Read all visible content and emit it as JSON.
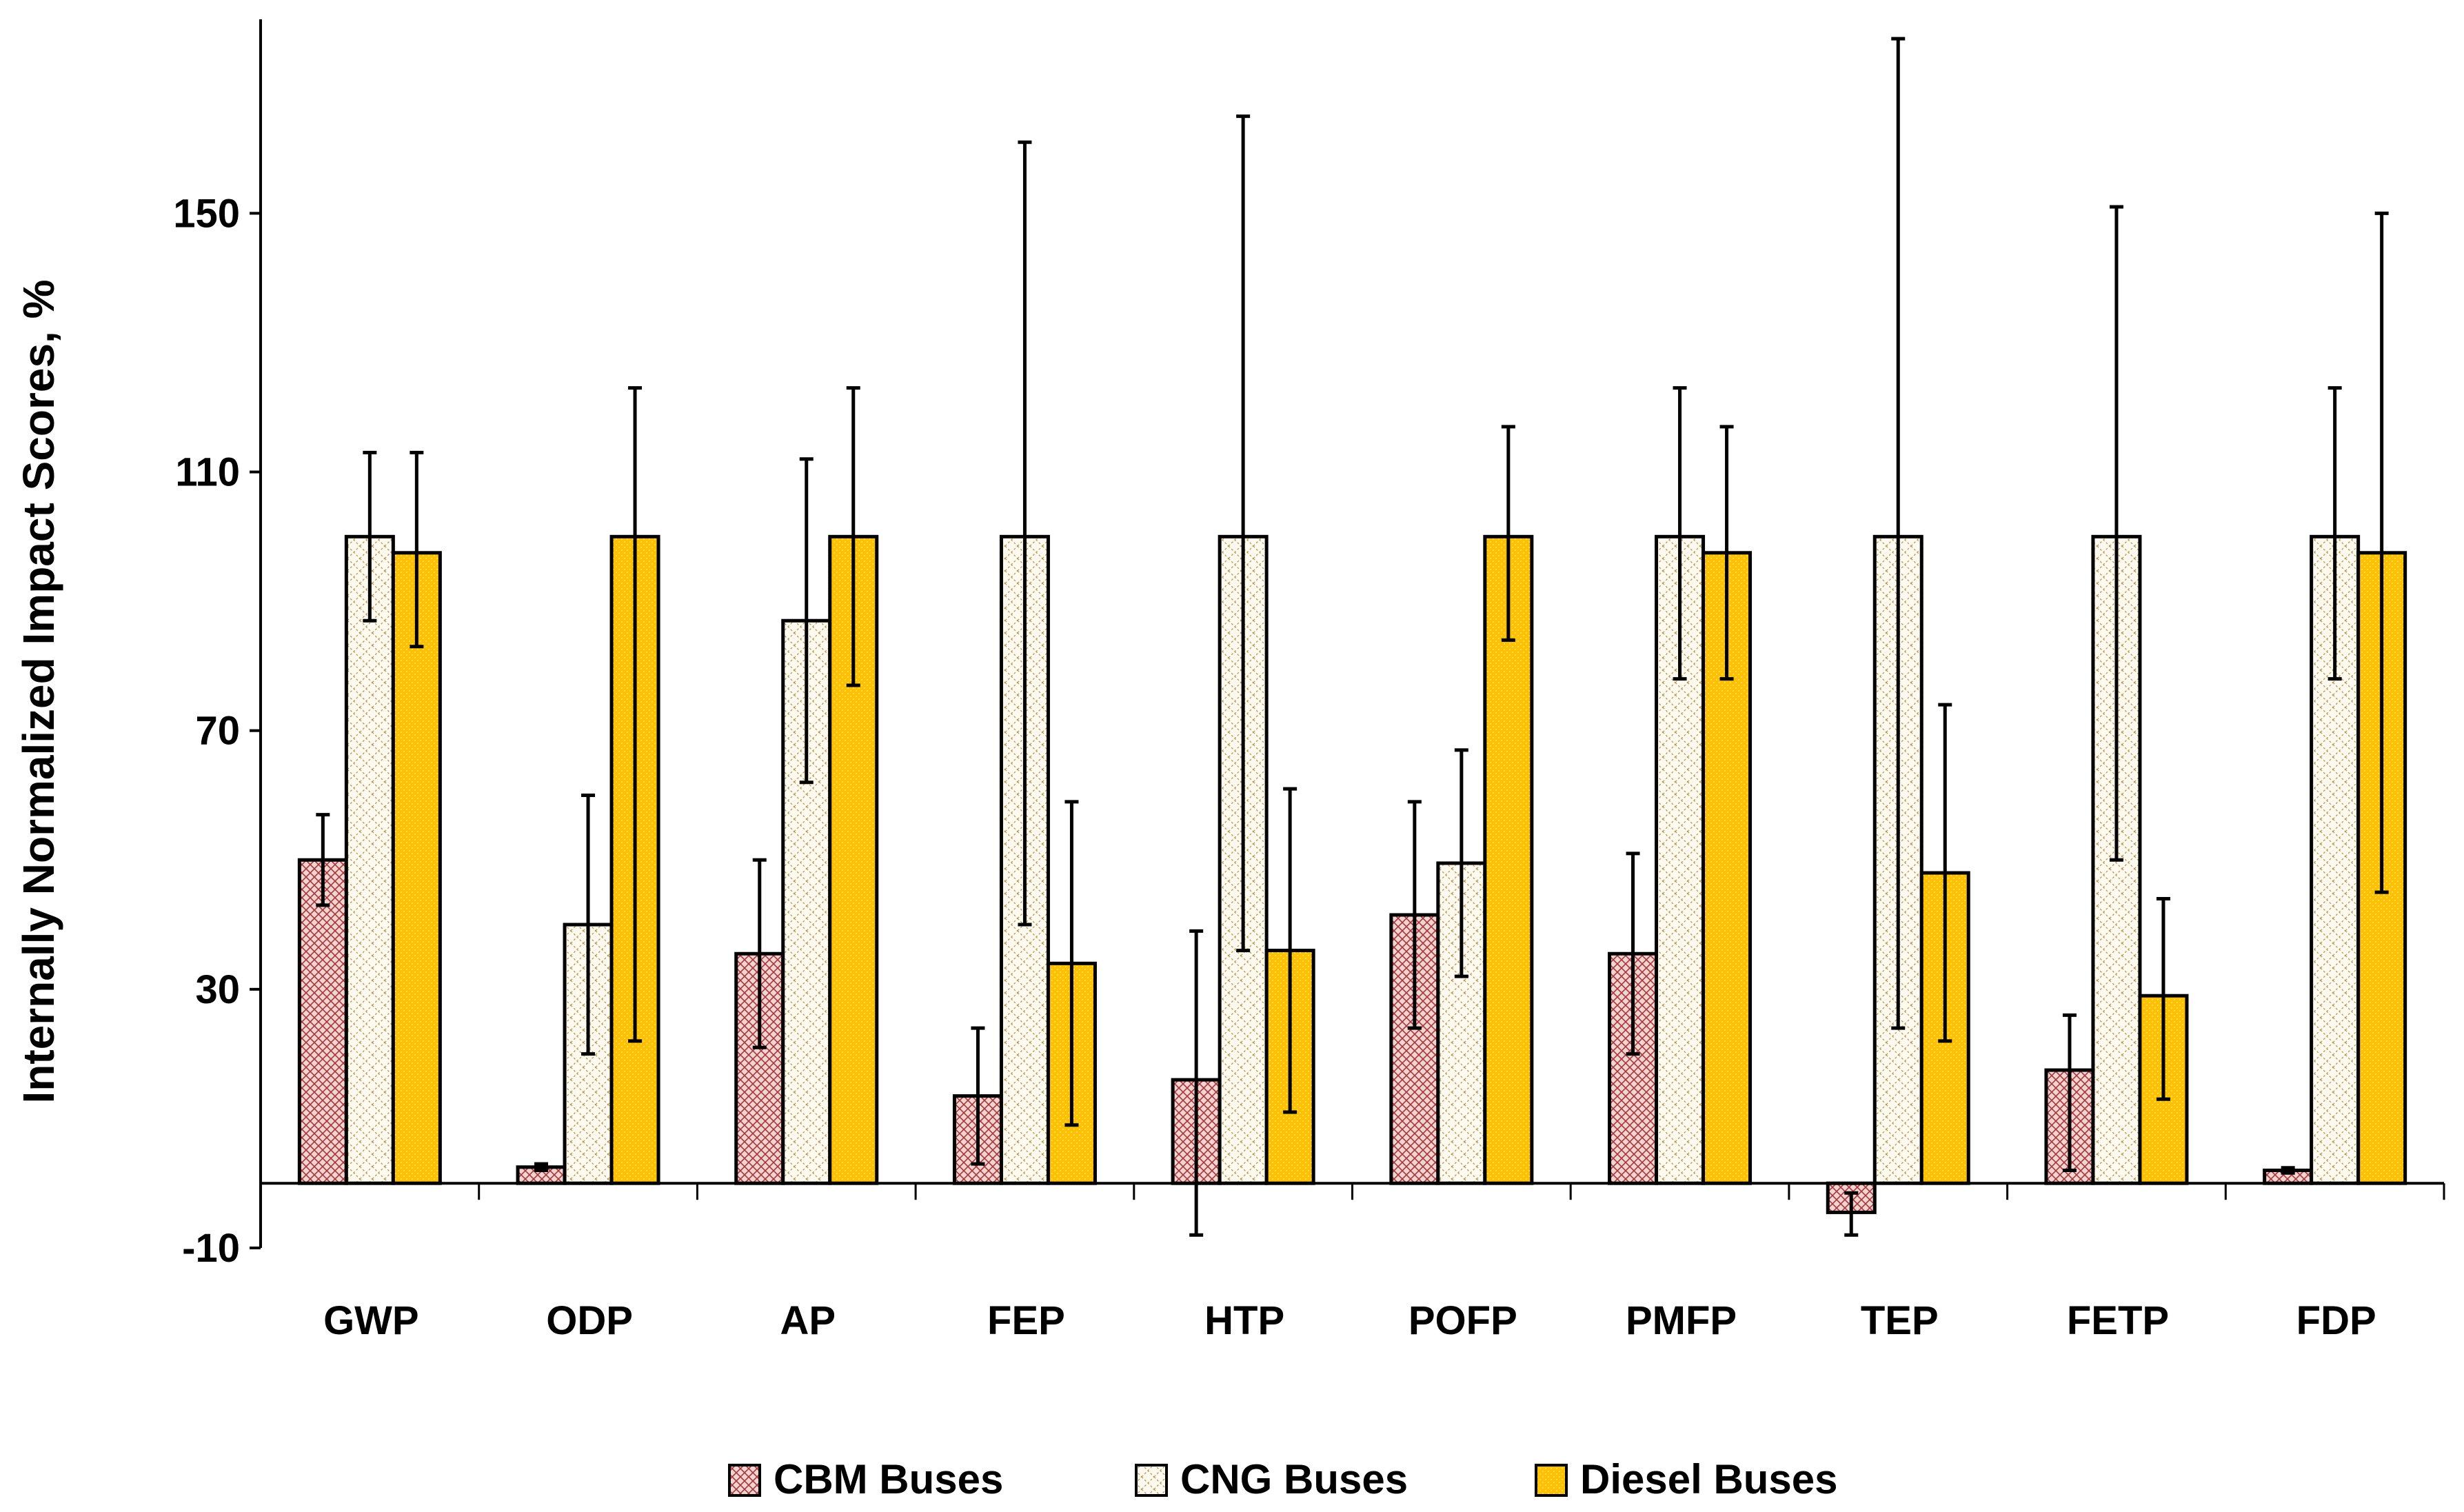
{
  "chart_data": {
    "type": "bar",
    "title": "",
    "xlabel": "",
    "ylabel": "Internally Normalized Impact Scores, %",
    "ylim": [
      -10,
      180
    ],
    "yticks": [
      -10,
      30,
      70,
      110,
      150
    ],
    "ytick_labels": [
      "-10",
      "30",
      "70",
      "110",
      "150"
    ],
    "categories": [
      "GWP",
      "ODP",
      "AP",
      "FEP",
      "HTP",
      "POFP",
      "PMFP",
      "TEP",
      "FETP",
      "FDP"
    ],
    "legend_position": "bottom",
    "series": [
      {
        "name": "CBM Buses",
        "color": "#f2c9c9",
        "pattern": "crosshatch-red",
        "values": [
          50,
          2.5,
          35.5,
          13.5,
          16,
          41.5,
          35.5,
          -4.5,
          17.5,
          2
        ],
        "err_low": [
          43,
          2,
          21,
          3,
          -8,
          24,
          20,
          -8,
          2,
          1.6
        ],
        "err_high": [
          57,
          3,
          50,
          24,
          39,
          59,
          51,
          -1.5,
          26,
          2.4
        ]
      },
      {
        "name": "CNG Buses",
        "color": "#fdf6e0",
        "pattern": "diagonal-tan",
        "values": [
          100,
          40,
          87,
          100,
          100,
          49.5,
          100,
          100,
          100,
          100
        ],
        "err_low": [
          87,
          20,
          62,
          40,
          36,
          32,
          78,
          24,
          50,
          78
        ],
        "err_high": [
          113,
          60,
          112,
          161,
          165,
          67,
          123,
          177,
          151,
          123
        ]
      },
      {
        "name": "Diesel Buses",
        "color": "#ffc000",
        "pattern": "dotted-yellow",
        "values": [
          97.5,
          100,
          100,
          34,
          36,
          100,
          97.5,
          48,
          29,
          97.5
        ],
        "err_low": [
          83,
          22,
          77,
          9,
          11,
          84,
          78,
          22,
          13,
          45
        ],
        "err_high": [
          113,
          123,
          123,
          59,
          61,
          117,
          117,
          74,
          44,
          150
        ]
      }
    ]
  }
}
